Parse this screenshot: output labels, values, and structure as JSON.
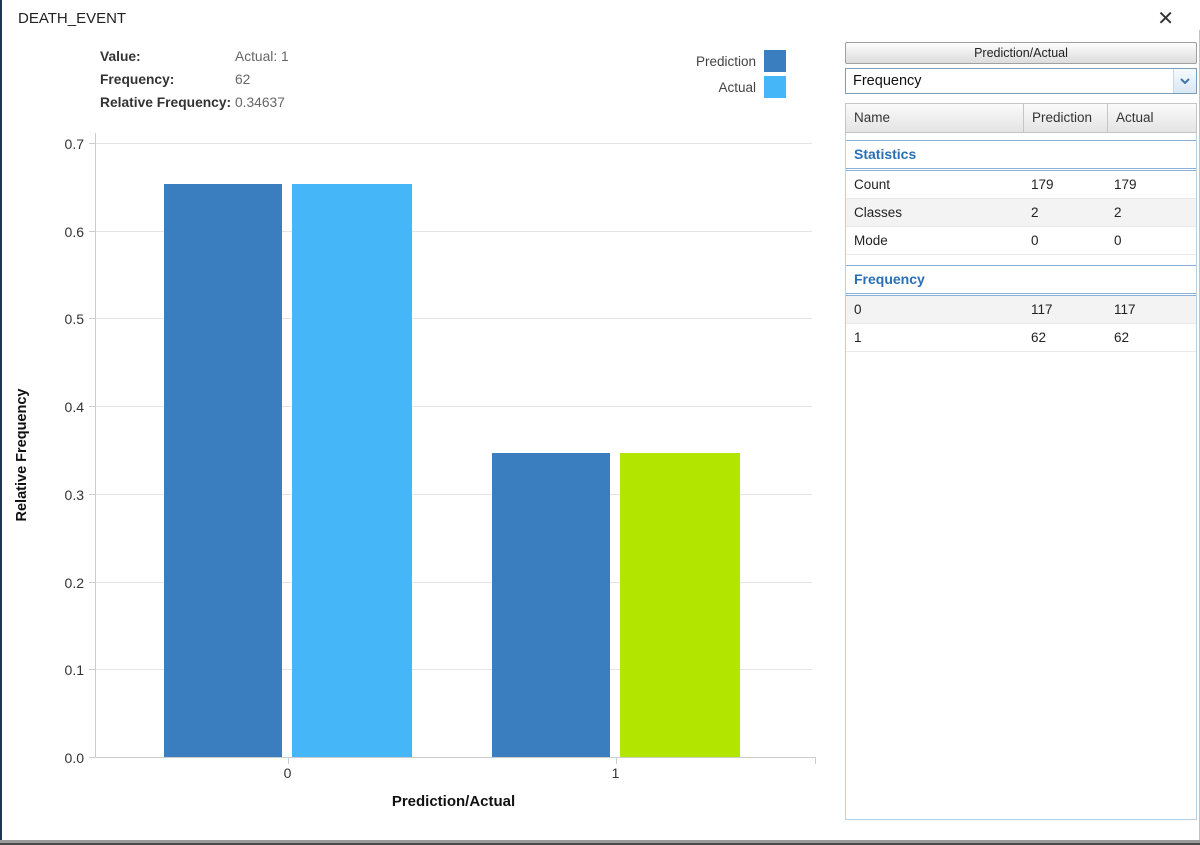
{
  "window": {
    "title": "DEATH_EVENT",
    "close_icon": "✕"
  },
  "tooltip": {
    "rows": [
      {
        "label": "Value:",
        "value": "Actual: 1"
      },
      {
        "label": "Frequency:",
        "value": "62"
      },
      {
        "label": "Relative Frequency:",
        "value": "0.34637"
      }
    ]
  },
  "legend": {
    "items": [
      {
        "label": "Prediction",
        "color": "#3A7EBF"
      },
      {
        "label": "Actual",
        "color": "#45B6F7"
      }
    ]
  },
  "chart_data": {
    "type": "bar",
    "title": "DEATH_EVENT",
    "categories": [
      "0",
      "1"
    ],
    "series": [
      {
        "name": "Prediction",
        "color": "#3A7EBF",
        "values": [
          0.65363,
          0.34637
        ],
        "frequencies": [
          117,
          62
        ]
      },
      {
        "name": "Actual",
        "color": "#45B6F7",
        "values": [
          0.65363,
          0.34637
        ],
        "frequencies": [
          117,
          62
        ]
      }
    ],
    "highlight": {
      "series": "Actual",
      "category": "1",
      "color": "#B2E500"
    },
    "xlabel": "Prediction/Actual",
    "ylabel": "Relative Frequency",
    "ylim": [
      0,
      0.7
    ],
    "yticks": [
      "0.0",
      "0.1",
      "0.2",
      "0.3",
      "0.4",
      "0.5",
      "0.6",
      "0.7"
    ],
    "grid": true,
    "legend_position": "top-right"
  },
  "panel": {
    "header": "Prediction/Actual",
    "dropdown": {
      "value": "Frequency"
    },
    "table": {
      "columns": [
        "Name",
        "Prediction",
        "Actual"
      ],
      "sections": [
        {
          "title": "Statistics",
          "rows": [
            [
              "Count",
              "179",
              "179"
            ],
            [
              "Classes",
              "2",
              "2"
            ],
            [
              "Mode",
              "0",
              "0"
            ]
          ]
        },
        {
          "title": "Frequency",
          "rows": [
            [
              "0",
              "117",
              "117"
            ],
            [
              "1",
              "62",
              "62"
            ]
          ]
        }
      ]
    }
  },
  "colors": {
    "prediction": "#3A7EBF",
    "actual": "#45B6F7",
    "highlight": "#B2E500",
    "section_title": "#2A6FB5",
    "grid": "#E4E4E4",
    "axis": "#CCCCCC"
  }
}
